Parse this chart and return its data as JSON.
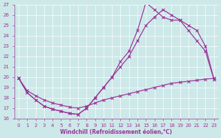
{
  "xlabel": "Windchill (Refroidissement éolien,°C)",
  "xlim_min": -0.5,
  "xlim_max": 23.5,
  "ylim_min": 16,
  "ylim_max": 27,
  "yticks": [
    16,
    17,
    18,
    19,
    20,
    21,
    22,
    23,
    24,
    25,
    26,
    27
  ],
  "xticks": [
    0,
    1,
    2,
    3,
    4,
    5,
    6,
    7,
    8,
    9,
    10,
    11,
    12,
    13,
    14,
    15,
    16,
    17,
    18,
    19,
    20,
    21,
    22,
    23
  ],
  "bg_color": "#cde8e8",
  "line_color": "#993399",
  "line1_x": [
    0,
    1,
    2,
    3,
    4,
    5,
    6,
    7,
    8,
    9,
    10,
    11,
    12,
    13,
    14,
    15,
    16,
    17,
    18,
    19,
    20,
    21,
    22,
    23
  ],
  "line1_y": [
    19.9,
    18.5,
    17.8,
    17.2,
    16.9,
    16.7,
    16.5,
    16.4,
    17.0,
    18.0,
    19.0,
    20.0,
    21.5,
    22.5,
    24.5,
    27.2,
    26.5,
    25.8,
    25.5,
    25.5,
    25.0,
    24.5,
    23.0,
    19.8
  ],
  "line2_x": [
    0,
    1,
    2,
    3,
    4,
    5,
    6,
    7,
    8,
    9,
    10,
    11,
    12,
    13,
    14,
    15,
    16,
    17,
    18,
    19,
    20,
    21,
    22,
    23
  ],
  "line2_y": [
    19.9,
    18.5,
    17.8,
    17.2,
    16.9,
    16.7,
    16.5,
    16.4,
    17.0,
    18.0,
    19.0,
    20.0,
    21.0,
    22.0,
    23.5,
    25.0,
    25.8,
    26.5,
    26.0,
    25.5,
    24.5,
    23.5,
    22.5,
    19.8
  ],
  "line3_x": [
    0,
    1,
    2,
    3,
    4,
    5,
    6,
    7,
    8,
    9,
    10,
    11,
    12,
    13,
    14,
    15,
    16,
    17,
    18,
    19,
    20,
    21,
    22,
    23
  ],
  "line3_y": [
    19.9,
    18.7,
    18.2,
    17.8,
    17.5,
    17.3,
    17.1,
    17.0,
    17.2,
    17.5,
    17.8,
    18.0,
    18.2,
    18.4,
    18.6,
    18.8,
    19.0,
    19.2,
    19.4,
    19.5,
    19.6,
    19.7,
    19.8,
    19.9
  ]
}
